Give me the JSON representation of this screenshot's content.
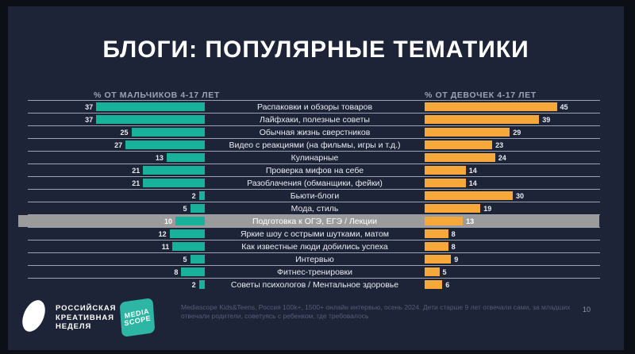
{
  "title": "БЛОГИ: ПОПУЛЯРНЫЕ ТЕМАТИКИ",
  "columns": {
    "left_header": "% ОТ МАЛЬЧИКОВ 4-17 ЛЕТ",
    "right_header": "% ОТ ДЕВОЧЕК 4-17 ЛЕТ"
  },
  "chart_data": {
    "type": "bar",
    "orientation": "horizontal-bidirectional",
    "categories": [
      "Распаковки и обзоры товаров",
      "Лайфхаки, полезные советы",
      "Обычная жизнь сверстников",
      "Видео с реакциями (на фильмы, игры и т.д.)",
      "Кулинарные",
      "Проверка мифов на себе",
      "Разоблачения (обманщики, фейки)",
      "Бьюти-блоги",
      "Мода, стиль",
      "Подготовка к ОГЭ, ЕГЭ / Лекции",
      "Яркие шоу с острыми шутками, матом",
      "Как известные люди добились успеха",
      "Интервью",
      "Фитнес-тренировки",
      "Советы психологов / Ментальное здоровье"
    ],
    "series": [
      {
        "name": "% от мальчиков 4-17 лет",
        "color": "#18b29b",
        "values": [
          37,
          37,
          25,
          27,
          13,
          21,
          21,
          2,
          5,
          10,
          12,
          11,
          5,
          8,
          2
        ]
      },
      {
        "name": "% от девочек 4-17 лет",
        "color": "#f6a83b",
        "values": [
          45,
          39,
          29,
          23,
          24,
          14,
          14,
          30,
          19,
          13,
          8,
          8,
          9,
          5,
          6
        ]
      }
    ],
    "highlight_index": 9,
    "highlighted_category": "Подготовка к ОГЭ, ЕГЭ / Лекции",
    "highlight_color": "#9b9b9b",
    "xlim_left": [
      0,
      45
    ],
    "xlim_right": [
      0,
      45
    ],
    "grid": false,
    "legend_position": "top-as-column-headers"
  },
  "footer": {
    "rkn_logo_text": "РОССИЙСКАЯ\nКРЕАТИВНАЯ\nНЕДЕЛЯ",
    "mediascope_line1": "MEDIA",
    "mediascope_line2": "SCOPE",
    "footnote": "Mediascope Kids&Teens, Россия 100k+, 1500+ онлайн интервью, осень 2024. Дети старше 9 лет отвечали сами, за младших отвечали родители, советуясь с ребенком, где требовалось",
    "page_number": "10"
  }
}
